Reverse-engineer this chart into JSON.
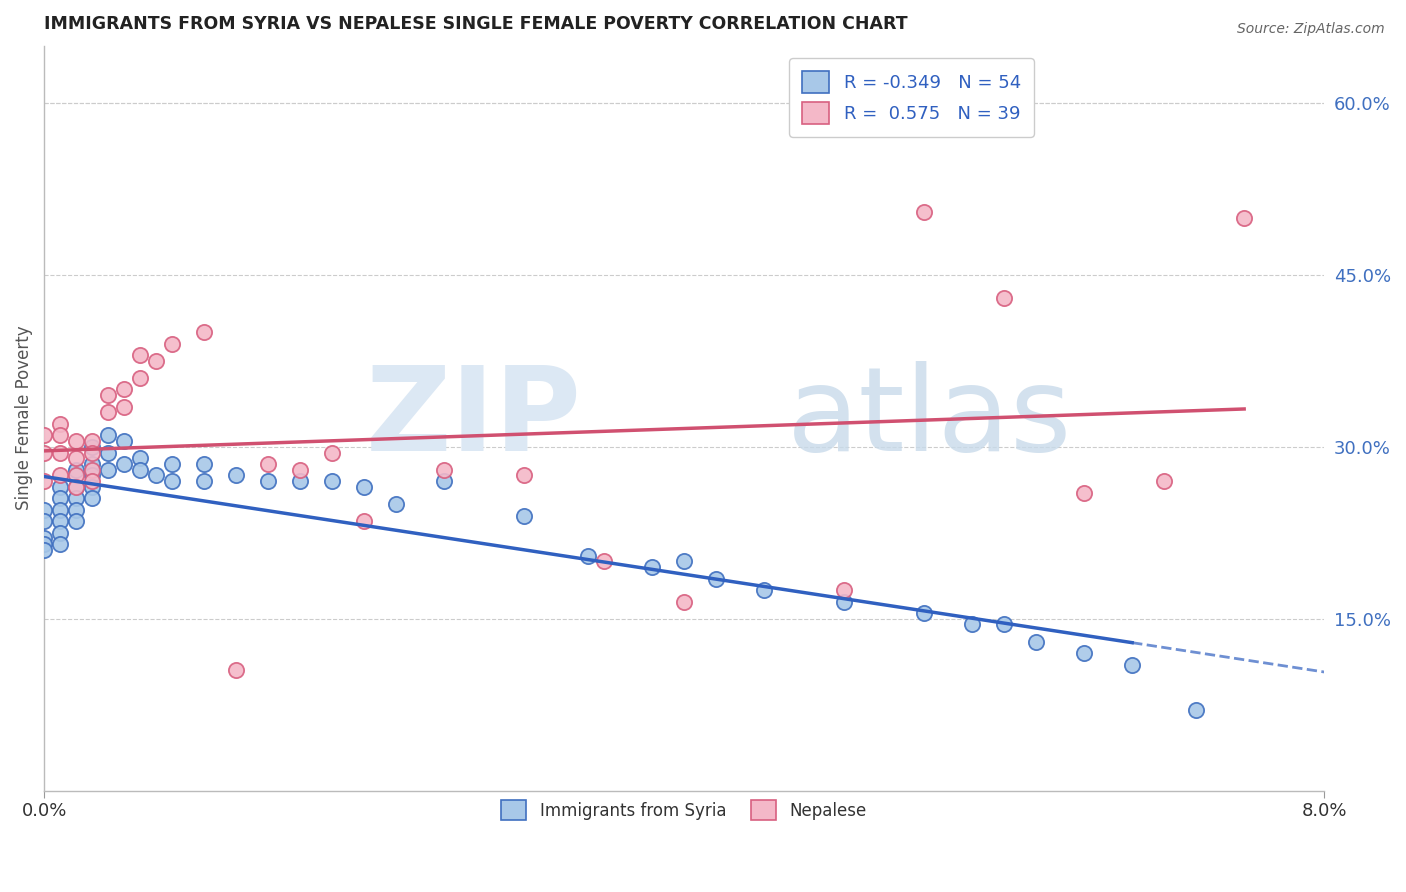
{
  "title": "IMMIGRANTS FROM SYRIA VS NEPALESE SINGLE FEMALE POVERTY CORRELATION CHART",
  "source": "Source: ZipAtlas.com",
  "ylabel": "Single Female Poverty",
  "right_yticks": [
    "60.0%",
    "45.0%",
    "30.0%",
    "15.0%"
  ],
  "right_ytick_vals": [
    0.6,
    0.45,
    0.3,
    0.15
  ],
  "legend_blue_r": "R = -0.349",
  "legend_blue_n": "N = 54",
  "legend_pink_r": "R =  0.575",
  "legend_pink_n": "N = 39",
  "blue_color": "#a8c8e8",
  "pink_color": "#f4b8c8",
  "blue_edge_color": "#4070c0",
  "pink_edge_color": "#d86080",
  "blue_line_color": "#3060c0",
  "pink_line_color": "#d05070",
  "xlim": [
    0.0,
    0.08
  ],
  "ylim": [
    0.0,
    0.65
  ],
  "blue_scatter_x": [
    0.0,
    0.0,
    0.0,
    0.0,
    0.0,
    0.001,
    0.001,
    0.001,
    0.001,
    0.001,
    0.001,
    0.002,
    0.002,
    0.002,
    0.002,
    0.002,
    0.003,
    0.003,
    0.003,
    0.003,
    0.003,
    0.004,
    0.004,
    0.004,
    0.005,
    0.005,
    0.006,
    0.006,
    0.007,
    0.008,
    0.008,
    0.01,
    0.01,
    0.012,
    0.014,
    0.016,
    0.018,
    0.02,
    0.022,
    0.025,
    0.03,
    0.034,
    0.038,
    0.04,
    0.042,
    0.045,
    0.05,
    0.055,
    0.058,
    0.06,
    0.062,
    0.065,
    0.068,
    0.072
  ],
  "blue_scatter_y": [
    0.245,
    0.235,
    0.22,
    0.215,
    0.21,
    0.265,
    0.255,
    0.245,
    0.235,
    0.225,
    0.215,
    0.28,
    0.265,
    0.255,
    0.245,
    0.235,
    0.3,
    0.285,
    0.275,
    0.265,
    0.255,
    0.31,
    0.295,
    0.28,
    0.305,
    0.285,
    0.29,
    0.28,
    0.275,
    0.285,
    0.27,
    0.285,
    0.27,
    0.275,
    0.27,
    0.27,
    0.27,
    0.265,
    0.25,
    0.27,
    0.24,
    0.205,
    0.195,
    0.2,
    0.185,
    0.175,
    0.165,
    0.155,
    0.145,
    0.145,
    0.13,
    0.12,
    0.11,
    0.07
  ],
  "pink_scatter_x": [
    0.0,
    0.0,
    0.0,
    0.001,
    0.001,
    0.001,
    0.001,
    0.002,
    0.002,
    0.002,
    0.002,
    0.003,
    0.003,
    0.003,
    0.003,
    0.004,
    0.004,
    0.005,
    0.005,
    0.006,
    0.006,
    0.007,
    0.008,
    0.01,
    0.012,
    0.014,
    0.016,
    0.018,
    0.02,
    0.025,
    0.03,
    0.035,
    0.04,
    0.05,
    0.055,
    0.06,
    0.065,
    0.07,
    0.075
  ],
  "pink_scatter_y": [
    0.31,
    0.295,
    0.27,
    0.32,
    0.31,
    0.295,
    0.275,
    0.305,
    0.29,
    0.275,
    0.265,
    0.305,
    0.295,
    0.28,
    0.27,
    0.345,
    0.33,
    0.35,
    0.335,
    0.38,
    0.36,
    0.375,
    0.39,
    0.4,
    0.105,
    0.285,
    0.28,
    0.295,
    0.235,
    0.28,
    0.275,
    0.2,
    0.165,
    0.175,
    0.505,
    0.43,
    0.26,
    0.27,
    0.5
  ]
}
